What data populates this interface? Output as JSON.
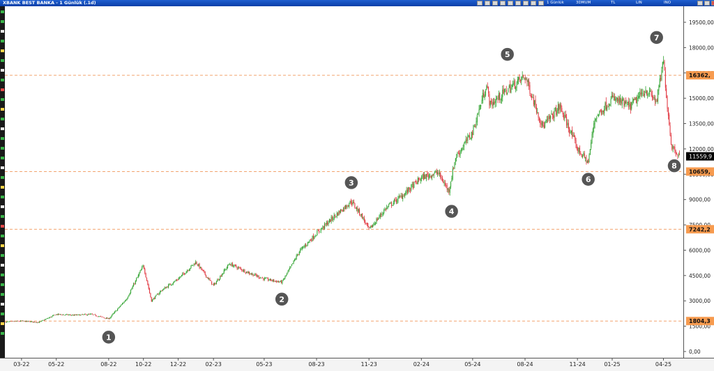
{
  "window": {
    "title": "XBANK BEST BANKA - 1 Günlük (.1d)",
    "options": [
      "1 Günlük",
      "3DMUM",
      "TL",
      "LIN",
      "INO"
    ]
  },
  "chart_data": {
    "type": "candlestick",
    "title": "",
    "xlabel": "",
    "ylabel": "",
    "ylim": [
      0,
      20500
    ],
    "yticks": [
      "0,00",
      "1500,00",
      "3000,00",
      "4500,00",
      "6000,00",
      "7500,00",
      "9000,00",
      "10500,00",
      "12000,00",
      "13500,00",
      "15000,00",
      "16500,00",
      "18000,00",
      "19500,00"
    ],
    "xticks": [
      "03-22",
      "05-22",
      "08-22",
      "10-22",
      "12-22",
      "02-23",
      "05-23",
      "08-23",
      "11-23",
      "02-24",
      "05-24",
      "08-24",
      "11-24",
      "01-25",
      "04-25"
    ],
    "colors": {
      "up": "#2aa02a",
      "down": "#e0303a",
      "hline": "#f2a46e",
      "level_label_bg": "#f79b4f",
      "current_label_bg": "#000000",
      "marker": "#555555"
    },
    "horizontal_levels": [
      {
        "value": 16362,
        "label": "16362,"
      },
      {
        "value": 10659,
        "label": "10659,"
      },
      {
        "value": 7242.2,
        "label": "7242,2"
      },
      {
        "value": 1804.3,
        "label": "1804,3"
      }
    ],
    "current_price": {
      "value": 11559.9,
      "label": "11559,9"
    },
    "price_path": [
      {
        "date": "2022-02",
        "price": 1750
      },
      {
        "date": "2022-03",
        "price": 1800
      },
      {
        "date": "2022-04",
        "price": 1730
      },
      {
        "date": "2022-05",
        "price": 2200
      },
      {
        "date": "2022-06",
        "price": 2150
      },
      {
        "date": "2022-07",
        "price": 2200
      },
      {
        "date": "2022-08",
        "price": 1930
      },
      {
        "date": "2022-09",
        "price": 3100
      },
      {
        "date": "2022-10",
        "price": 5100
      },
      {
        "date": "2022-10-15",
        "price": 3000
      },
      {
        "date": "2022-11",
        "price": 3600
      },
      {
        "date": "2022-12",
        "price": 4300
      },
      {
        "date": "2023-01",
        "price": 5300
      },
      {
        "date": "2023-02",
        "price": 3900
      },
      {
        "date": "2023-03",
        "price": 5200
      },
      {
        "date": "2023-04",
        "price": 4700
      },
      {
        "date": "2023-05",
        "price": 4300
      },
      {
        "date": "2023-06",
        "price": 4100
      },
      {
        "date": "2023-06-15",
        "price": 4900
      },
      {
        "date": "2023-07",
        "price": 5900
      },
      {
        "date": "2023-08",
        "price": 7000
      },
      {
        "date": "2023-09",
        "price": 8000
      },
      {
        "date": "2023-10",
        "price": 8900
      },
      {
        "date": "2023-10-20",
        "price": 8000
      },
      {
        "date": "2023-11",
        "price": 7200
      },
      {
        "date": "2023-12",
        "price": 8500
      },
      {
        "date": "2024-01",
        "price": 9300
      },
      {
        "date": "2024-02",
        "price": 10300
      },
      {
        "date": "2024-03",
        "price": 10600
      },
      {
        "date": "2024-03-20",
        "price": 9500
      },
      {
        "date": "2024-04",
        "price": 11500
      },
      {
        "date": "2024-05",
        "price": 13000
      },
      {
        "date": "2024-05-25",
        "price": 15800
      },
      {
        "date": "2024-06",
        "price": 14600
      },
      {
        "date": "2024-07",
        "price": 15500
      },
      {
        "date": "2024-08",
        "price": 16300
      },
      {
        "date": "2024-08-20",
        "price": 14500
      },
      {
        "date": "2024-09",
        "price": 13300
      },
      {
        "date": "2024-10",
        "price": 14500
      },
      {
        "date": "2024-10-20",
        "price": 13000
      },
      {
        "date": "2024-11",
        "price": 12000
      },
      {
        "date": "2024-11-20",
        "price": 11200
      },
      {
        "date": "2024-12",
        "price": 13800
      },
      {
        "date": "2025-01",
        "price": 15000
      },
      {
        "date": "2025-02",
        "price": 14500
      },
      {
        "date": "2025-03",
        "price": 15500
      },
      {
        "date": "2025-03-20",
        "price": 14800
      },
      {
        "date": "2025-04",
        "price": 17200
      },
      {
        "date": "2025-04-08",
        "price": 14500
      },
      {
        "date": "2025-04-15",
        "price": 12200
      },
      {
        "date": "2025-04-30",
        "price": 11560
      }
    ],
    "annotations": [
      {
        "label": "1",
        "date": "2022-08",
        "price": 850
      },
      {
        "label": "2",
        "date": "2023-06",
        "price": 3100
      },
      {
        "label": "3",
        "date": "2023-10",
        "price": 10000
      },
      {
        "label": "4",
        "date": "2024-03-25",
        "price": 8300
      },
      {
        "label": "5",
        "date": "2024-07",
        "price": 17600
      },
      {
        "label": "6",
        "date": "2024-11-20",
        "price": 10200
      },
      {
        "label": "7",
        "date": "2025-03-20",
        "price": 18600
      },
      {
        "label": "8",
        "date": "2025-04-20",
        "price": 11000
      }
    ]
  }
}
